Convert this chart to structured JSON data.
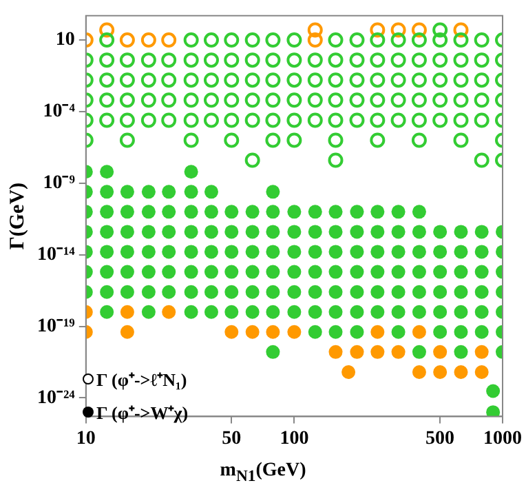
{
  "chart_data": {
    "type": "scatter",
    "xlabel": "m$_{N1}$(GeV)",
    "ylabel": "Γ(GeV)",
    "log": "xy",
    "grid": false,
    "marker": "circle",
    "xlim": [
      10,
      1000
    ],
    "xticks": [
      10,
      50,
      100,
      500,
      1000
    ],
    "ylim": [
      5e-26,
      500
    ],
    "yticks": [
      10,
      {
        "value": 0.0001,
        "label": "10⁻⁴"
      },
      {
        "value": 1e-09,
        "label": "10⁻⁹"
      },
      {
        "value": 1e-14,
        "label": "10⁻¹⁴"
      },
      {
        "value": 1e-19,
        "label": "10⁻¹⁹"
      },
      {
        "value": 1e-24,
        "label": "10⁻²⁴"
      }
    ],
    "annotations": [
      "Γ (φ⁺->ℓ⁺N₁)",
      "Γ (φ⁺->W⁺χ)"
    ],
    "series": [
      {
        "color": "#33cc33",
        "x": [
          12.6,
          32,
          40,
          50,
          63,
          79,
          100,
          158,
          200,
          251,
          316,
          398,
          501,
          631,
          794,
          1000,
          501,
          10,
          12.6,
          15.8,
          20,
          25,
          32,
          40,
          50,
          63,
          79,
          100,
          126,
          158,
          200,
          251,
          316,
          398,
          501,
          631,
          794,
          1000,
          10,
          12.6,
          15.8,
          20,
          25,
          32,
          40,
          50,
          63,
          79,
          100,
          126,
          158,
          200,
          251,
          316,
          398,
          501,
          631,
          794,
          1000,
          10,
          12.6,
          15.8,
          20,
          25,
          32,
          40,
          50,
          63,
          79,
          100,
          126,
          158,
          200,
          251,
          316,
          398,
          501,
          631,
          794,
          1000,
          10,
          12.6,
          15.8,
          20,
          25,
          32,
          40,
          50,
          63,
          79,
          100,
          126,
          158,
          200,
          251,
          316,
          398,
          501,
          631,
          794,
          1000,
          10,
          15.8,
          32,
          50,
          79,
          100,
          158,
          251,
          398,
          631,
          1000,
          63,
          158,
          794,
          1000
        ],
        "values": [
          10,
          10,
          10,
          10,
          10,
          10,
          10,
          10,
          10,
          10,
          10,
          10,
          10,
          10,
          10,
          10,
          50,
          0.4,
          0.4,
          0.4,
          0.4,
          0.4,
          0.4,
          0.4,
          0.4,
          0.4,
          0.4,
          0.4,
          0.4,
          0.4,
          0.4,
          0.4,
          0.4,
          0.4,
          0.4,
          0.4,
          0.4,
          0.4,
          0.016,
          0.016,
          0.016,
          0.016,
          0.016,
          0.016,
          0.016,
          0.016,
          0.016,
          0.016,
          0.016,
          0.016,
          0.016,
          0.016,
          0.016,
          0.016,
          0.016,
          0.016,
          0.016,
          0.016,
          0.016,
          0.00063,
          0.00063,
          0.00063,
          0.00063,
          0.00063,
          0.00063,
          0.00063,
          0.00063,
          0.00063,
          0.00063,
          0.00063,
          0.00063,
          0.00063,
          0.00063,
          0.00063,
          0.00063,
          0.00063,
          0.00063,
          0.00063,
          0.00063,
          0.00063,
          2.5e-05,
          2.5e-05,
          2.5e-05,
          2.5e-05,
          2.5e-05,
          2.5e-05,
          2.5e-05,
          2.5e-05,
          2.5e-05,
          2.5e-05,
          2.5e-05,
          2.5e-05,
          2.5e-05,
          2.5e-05,
          2.5e-05,
          2.5e-05,
          2.5e-05,
          2.5e-05,
          2.5e-05,
          2.5e-05,
          2.5e-05,
          1e-06,
          1e-06,
          1e-06,
          1e-06,
          1e-06,
          1e-06,
          1e-06,
          1e-06,
          1e-06,
          1e-06,
          1e-06,
          4e-08,
          4e-08,
          4e-08,
          4e-08
        ]
      },
      {
        "color": "#ff9900",
        "x": [
          10,
          15.8,
          20,
          25,
          126,
          12.6,
          126,
          251,
          316,
          398,
          631
        ],
        "values": [
          10,
          10,
          10,
          10,
          10,
          50,
          50,
          50,
          50,
          50,
          50
        ]
      },
      {
        "color": "#33cc33",
        "x": [
          10,
          12.6,
          32,
          10,
          12.6,
          15.8,
          20,
          25,
          32,
          40,
          79,
          10,
          12.6,
          15.8,
          20,
          25,
          32,
          40,
          50,
          63,
          79,
          100,
          126,
          158,
          200,
          251,
          316,
          398,
          10,
          12.6,
          15.8,
          20,
          25,
          32,
          40,
          50,
          63,
          79,
          100,
          126,
          158,
          200,
          251,
          316,
          398,
          501,
          631,
          794,
          1000,
          10,
          12.6,
          15.8,
          20,
          25,
          32,
          40,
          50,
          63,
          79,
          100,
          126,
          158,
          200,
          251,
          316,
          398,
          501,
          631,
          794,
          1000,
          10,
          12.6,
          15.8,
          20,
          25,
          32,
          40,
          50,
          63,
          79,
          100,
          126,
          158,
          200,
          251,
          316,
          398,
          501,
          631,
          794,
          1000,
          10,
          12.6,
          15.8,
          20,
          25,
          32,
          40,
          50,
          63,
          79,
          100,
          126,
          158,
          200,
          251,
          316,
          398,
          501,
          631,
          794,
          1000,
          12.6,
          20,
          32,
          40,
          50,
          63,
          79,
          100,
          126,
          158,
          200,
          251,
          316,
          398,
          501,
          631,
          794,
          1000,
          126,
          158,
          200,
          316,
          501,
          631,
          794,
          1000,
          79,
          398,
          631,
          1000,
          900,
          900
        ],
        "values": [
          6.3e-09,
          6.3e-09,
          6.3e-09,
          2.5e-10,
          2.5e-10,
          2.5e-10,
          2.5e-10,
          2.5e-10,
          2.5e-10,
          2.5e-10,
          2.5e-10,
          1e-11,
          1e-11,
          1e-11,
          1e-11,
          1e-11,
          1e-11,
          1e-11,
          1e-11,
          1e-11,
          1e-11,
          1e-11,
          1e-11,
          1e-11,
          1e-11,
          1e-11,
          1e-11,
          1e-11,
          4e-13,
          4e-13,
          4e-13,
          4e-13,
          4e-13,
          4e-13,
          4e-13,
          4e-13,
          4e-13,
          4e-13,
          4e-13,
          4e-13,
          4e-13,
          4e-13,
          4e-13,
          4e-13,
          4e-13,
          4e-13,
          4e-13,
          4e-13,
          4e-13,
          1.6e-14,
          1.6e-14,
          1.6e-14,
          1.6e-14,
          1.6e-14,
          1.6e-14,
          1.6e-14,
          1.6e-14,
          1.6e-14,
          1.6e-14,
          1.6e-14,
          1.6e-14,
          1.6e-14,
          1.6e-14,
          1.6e-14,
          1.6e-14,
          1.6e-14,
          1.6e-14,
          1.6e-14,
          1.6e-14,
          1.6e-14,
          6.3e-16,
          6.3e-16,
          6.3e-16,
          6.3e-16,
          6.3e-16,
          6.3e-16,
          6.3e-16,
          6.3e-16,
          6.3e-16,
          6.3e-16,
          6.3e-16,
          6.3e-16,
          6.3e-16,
          6.3e-16,
          6.3e-16,
          6.3e-16,
          6.3e-16,
          6.3e-16,
          6.3e-16,
          6.3e-16,
          6.3e-16,
          2.5e-17,
          2.5e-17,
          2.5e-17,
          2.5e-17,
          2.5e-17,
          2.5e-17,
          2.5e-17,
          2.5e-17,
          2.5e-17,
          2.5e-17,
          2.5e-17,
          2.5e-17,
          2.5e-17,
          2.5e-17,
          2.5e-17,
          2.5e-17,
          2.5e-17,
          2.5e-17,
          2.5e-17,
          2.5e-17,
          2.5e-17,
          1e-18,
          1e-18,
          1e-18,
          1e-18,
          1e-18,
          1e-18,
          1e-18,
          1e-18,
          1e-18,
          1e-18,
          1e-18,
          1e-18,
          1e-18,
          1e-18,
          1e-18,
          1e-18,
          1e-18,
          1e-18,
          4e-20,
          4e-20,
          4e-20,
          4e-20,
          4e-20,
          4e-20,
          4e-20,
          4e-20,
          1.6e-21,
          1.6e-21,
          1.6e-21,
          1.6e-21,
          3e-24,
          1e-25
        ]
      },
      {
        "color": "#ff9900",
        "x": [
          10,
          15.8,
          25,
          10,
          15.8,
          50,
          63,
          79,
          100,
          251,
          398,
          158,
          200,
          251,
          316,
          501,
          794,
          182,
          398,
          501,
          631,
          794
        ],
        "values": [
          1e-18,
          1e-18,
          1e-18,
          4e-20,
          4e-20,
          4e-20,
          4e-20,
          4e-20,
          4e-20,
          4e-20,
          4e-20,
          1.6e-21,
          1.6e-21,
          1.6e-21,
          1.6e-21,
          1.6e-21,
          1.6e-21,
          6.3e-23,
          6.3e-23,
          6.3e-23,
          6.3e-23,
          6.3e-23
        ]
      }
    ]
  }
}
